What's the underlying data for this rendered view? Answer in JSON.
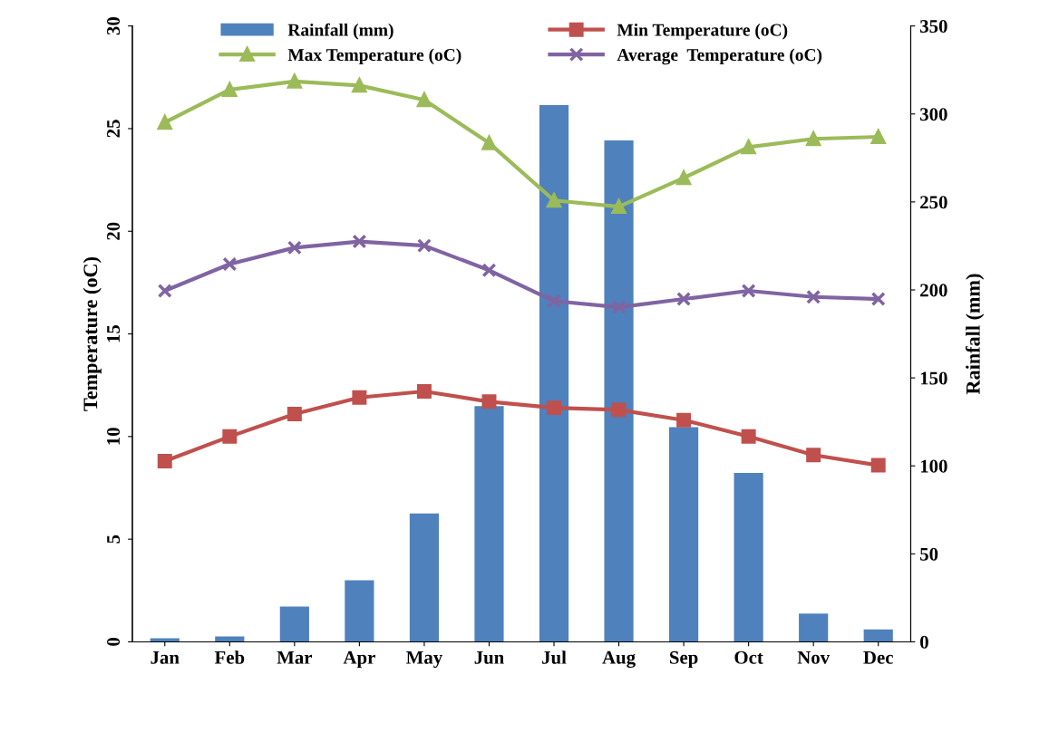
{
  "chart_data": {
    "type": "line",
    "categories": [
      "Jan",
      "Feb",
      "Mar",
      "Apr",
      "May",
      "Jun",
      "Jul",
      "Aug",
      "Sep",
      "Oct",
      "Nov",
      "Dec"
    ],
    "ylabel": "Temperature (oC)",
    "y2label": "Rainfall (mm)",
    "ylim": [
      0,
      30
    ],
    "yticks": [
      0,
      5,
      10,
      15,
      20,
      25,
      30
    ],
    "y2lim": [
      0,
      350
    ],
    "y2ticks": [
      0,
      50,
      100,
      150,
      200,
      250,
      300,
      350
    ],
    "grid": false,
    "legend": "top",
    "series": [
      {
        "name": "Rainfall (mm)",
        "type": "bar",
        "axis": "y2",
        "color": "#4f81bd",
        "values": [
          2,
          3,
          20,
          35,
          73,
          134,
          305,
          285,
          122,
          96,
          16,
          7
        ]
      },
      {
        "name": "Min Temperature (oC)",
        "marker": "square",
        "color": "#c0504d",
        "values": [
          8.8,
          10.0,
          11.1,
          11.9,
          12.2,
          11.7,
          11.4,
          11.3,
          10.8,
          10.0,
          9.1,
          8.6
        ]
      },
      {
        "name": "Max Temperature (oC)",
        "marker": "triangle",
        "color": "#9bbb59",
        "values": [
          25.3,
          26.9,
          27.3,
          27.1,
          26.4,
          24.3,
          21.5,
          21.2,
          22.6,
          24.1,
          24.5,
          24.6
        ]
      },
      {
        "name": "Average  Temperature (oC)",
        "marker": "cross",
        "color": "#8064a2",
        "values": [
          17.1,
          18.4,
          19.2,
          19.5,
          19.3,
          18.1,
          16.6,
          16.3,
          16.7,
          17.1,
          16.8,
          16.7
        ]
      }
    ]
  }
}
